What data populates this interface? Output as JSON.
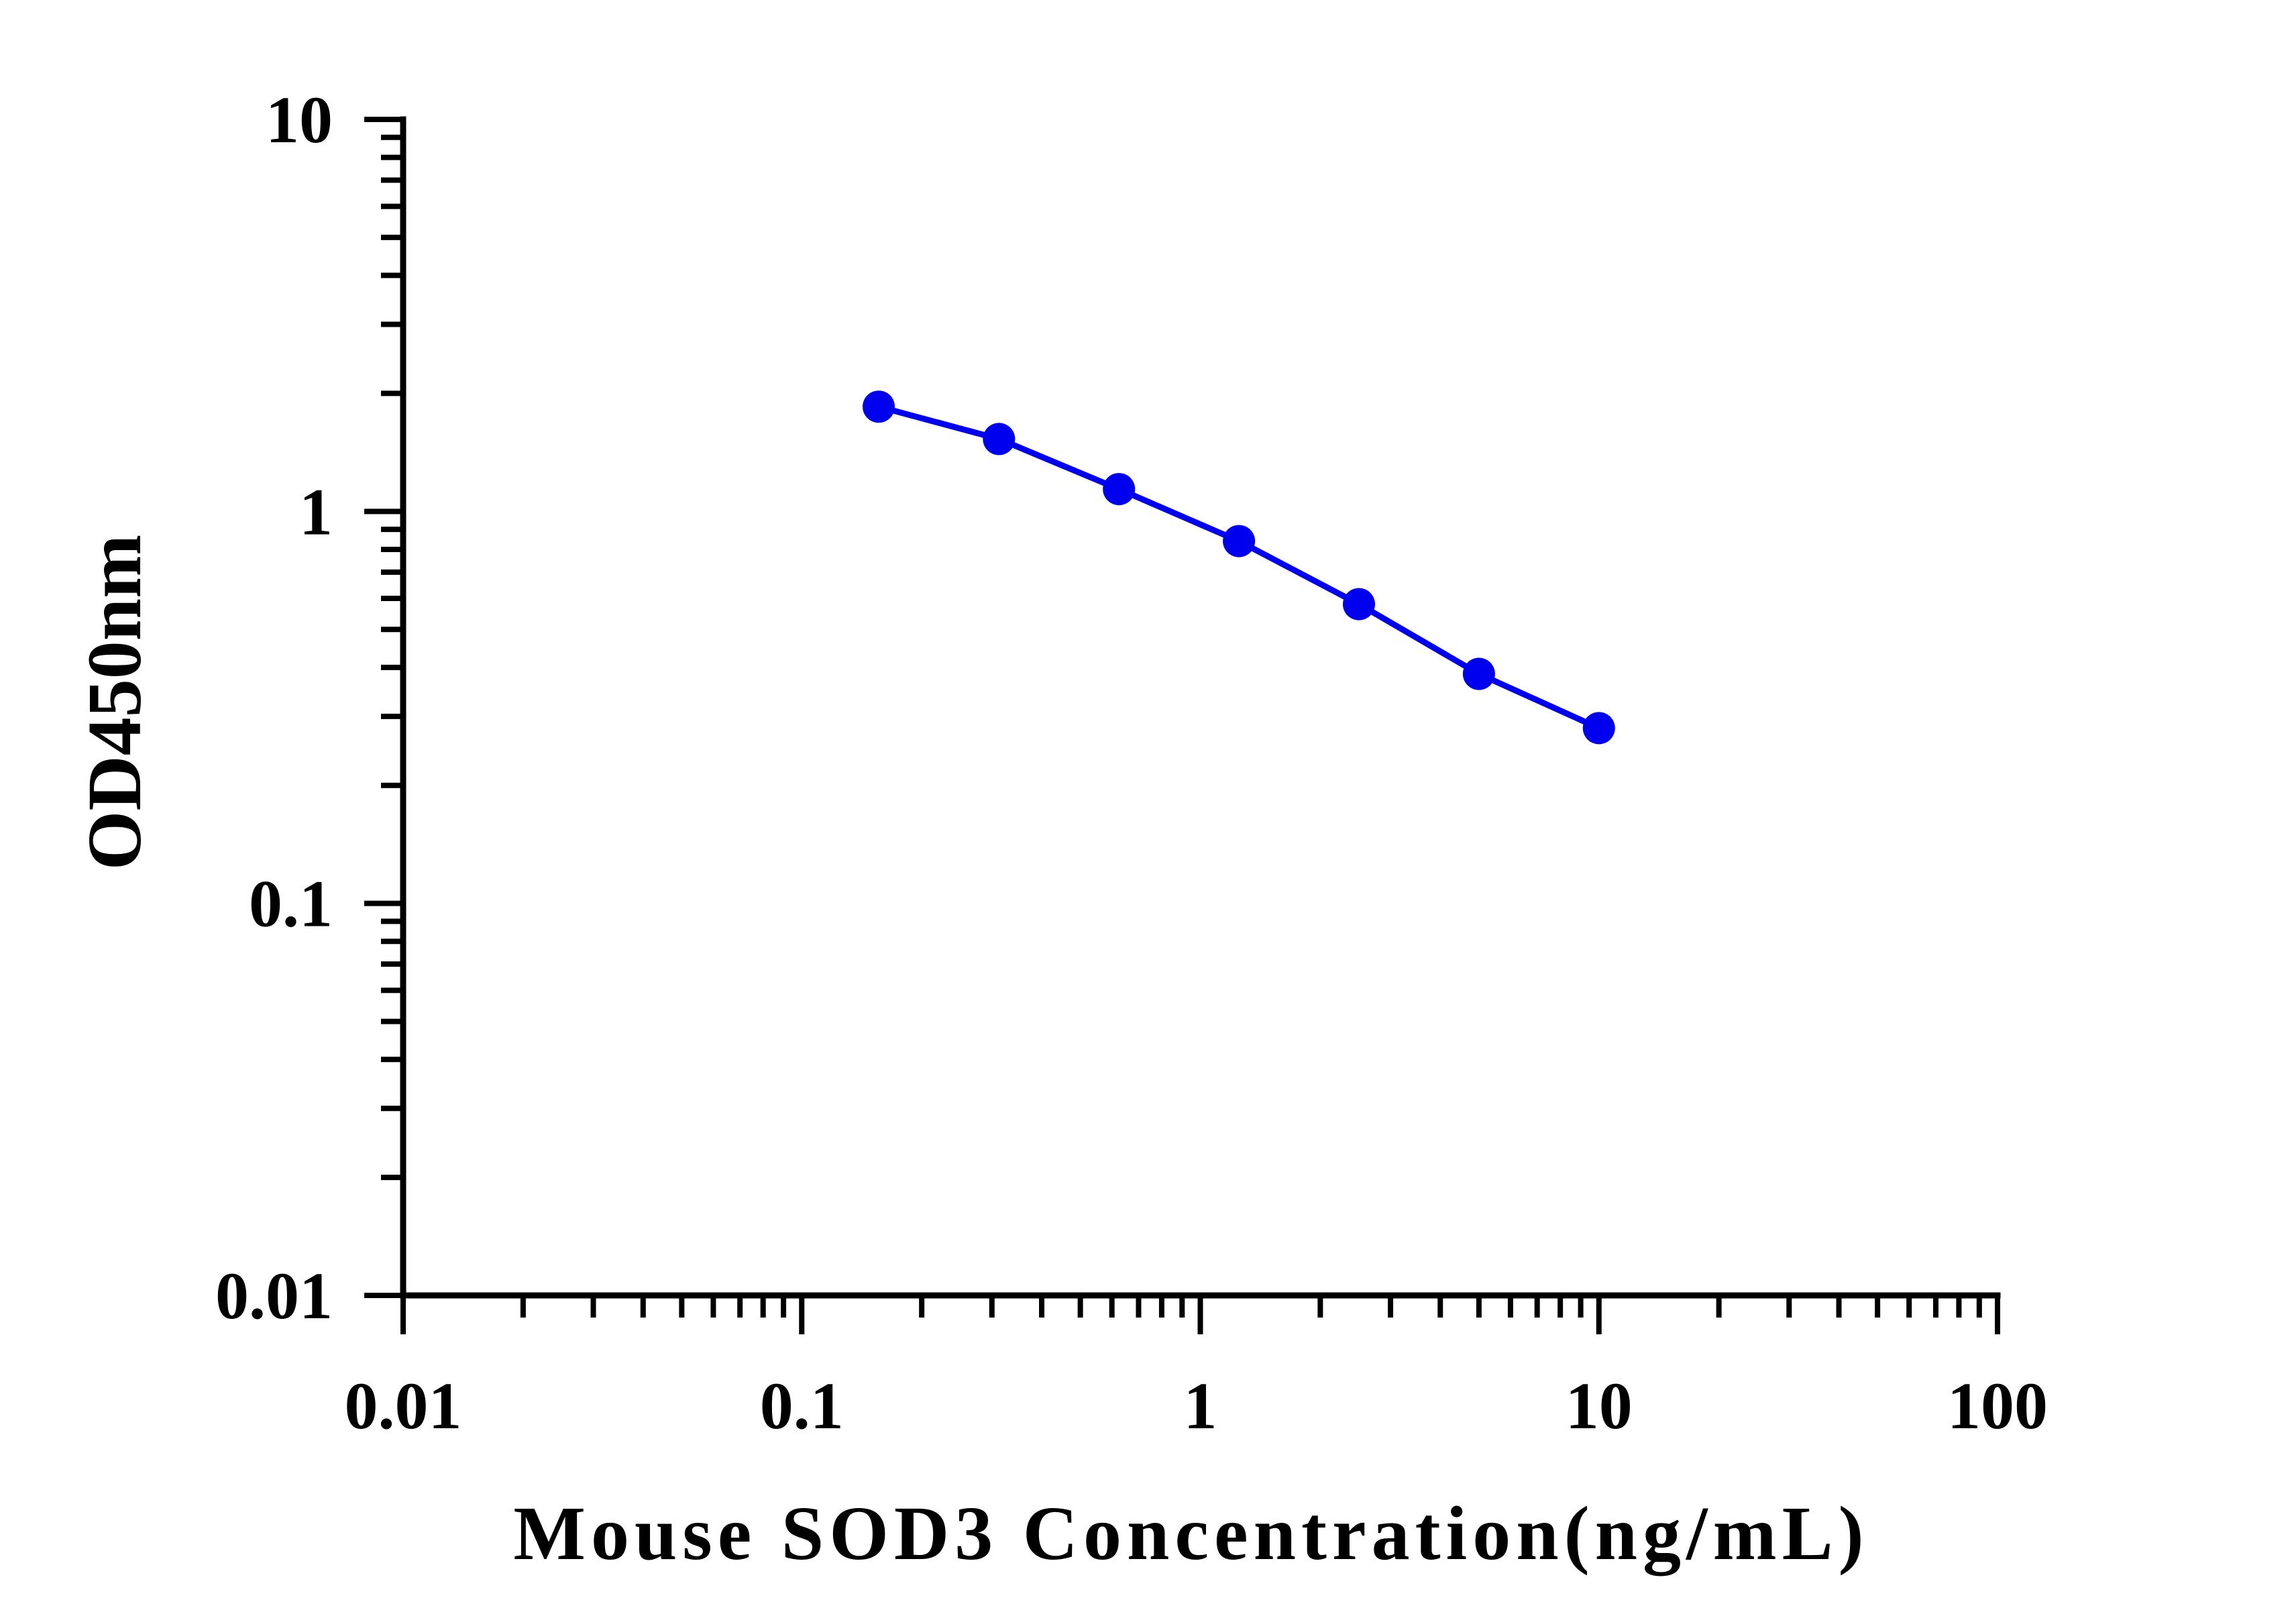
{
  "chart_data": {
    "type": "line",
    "title": "",
    "xlabel": "Mouse SOD3 Concentration(ng/mL)",
    "ylabel": "OD450nm",
    "xscale": "log",
    "yscale": "log",
    "xlim": [
      0.01,
      100
    ],
    "ylim": [
      0.01,
      10
    ],
    "xticks": [
      {
        "value": 0.01,
        "label": "0.01"
      },
      {
        "value": 0.1,
        "label": "0.1"
      },
      {
        "value": 1,
        "label": "1"
      },
      {
        "value": 10,
        "label": "10"
      },
      {
        "value": 100,
        "label": "100"
      }
    ],
    "yticks": [
      {
        "value": 0.01,
        "label": "0.01"
      },
      {
        "value": 0.1,
        "label": "0.1"
      },
      {
        "value": 1,
        "label": "1"
      },
      {
        "value": 10,
        "label": "10"
      }
    ],
    "grid": false,
    "legend": "none",
    "series": [
      {
        "color": "#0000ee",
        "marker": "circle",
        "x": [
          0.156,
          0.3125,
          0.625,
          1.25,
          2.5,
          5,
          10
        ],
        "y": [
          1.85,
          1.53,
          1.14,
          0.84,
          0.58,
          0.385,
          0.28
        ]
      }
    ]
  }
}
